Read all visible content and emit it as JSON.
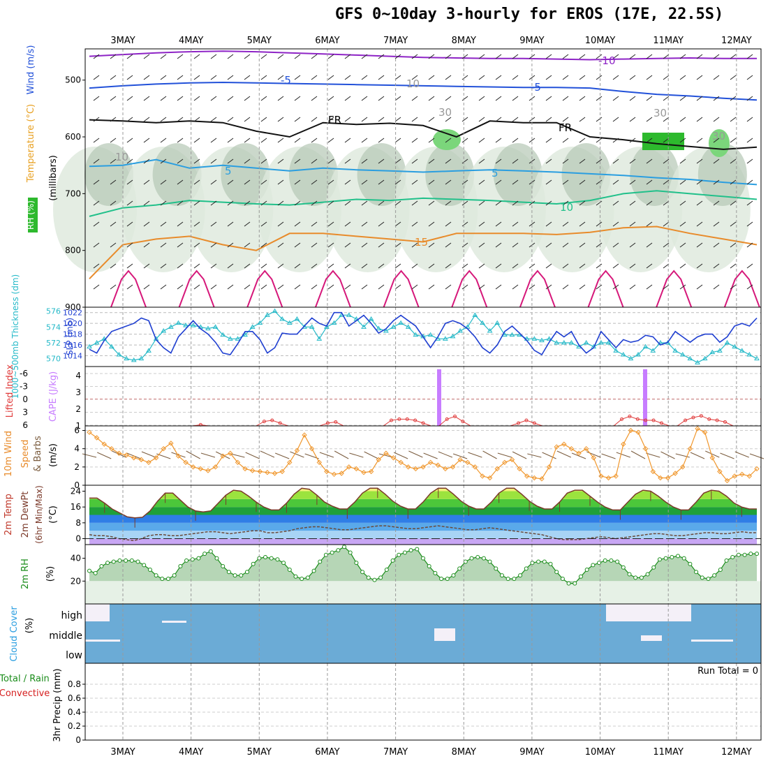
{
  "header": {
    "title": "GFS 0~10day 3-hourly for EROS (17E, 22.5S)"
  },
  "dates": [
    "3MAY",
    "4MAY",
    "5MAY",
    "6MAY",
    "7MAY",
    "8MAY",
    "9MAY",
    "10MAY",
    "11MAY",
    "12MAY"
  ],
  "colors": {
    "rh_green": "#2db92d",
    "slp": "#1f3fd1",
    "thickness": "#24b9c8",
    "lifted": "#e03c3c",
    "cape": "#c77dff",
    "wind": "#f0962b",
    "temp_fill": "#55c93d",
    "rh_line": "#1a8c1a",
    "cloud": "#6babd6"
  },
  "chart_data": [
    {
      "panel": "upper-air",
      "type": "contour",
      "ylabel_parts": [
        "RH (%)",
        "Temperature (°C)",
        "Wind (m/s)"
      ],
      "ylabel_units": "(millibars)",
      "y_ticks": [
        500,
        600,
        700,
        800,
        900
      ],
      "ylim": [
        445,
        900
      ],
      "contour_labels": [
        "-10",
        "-5",
        "-5",
        "FR",
        "FR",
        "5",
        "5",
        "10",
        "15",
        "30",
        "30",
        "10",
        "10",
        "30"
      ],
      "isotherms": [
        {
          "name": "-10",
          "values": [
            458,
            455,
            452,
            450,
            449,
            450,
            452,
            454,
            456,
            458,
            460,
            461,
            462,
            462,
            463,
            464,
            463,
            462,
            461,
            462,
            462
          ]
        },
        {
          "name": "-5",
          "values": [
            514,
            510,
            507,
            505,
            504,
            505,
            506,
            507,
            508,
            509,
            510,
            511,
            512,
            513,
            513,
            514,
            520,
            525,
            528,
            532,
            535
          ]
        },
        {
          "name": "0",
          "values": [
            570,
            572,
            575,
            572,
            575,
            590,
            600,
            575,
            578,
            576,
            580,
            600,
            572,
            575,
            575,
            600,
            605,
            612,
            617,
            622,
            618
          ]
        },
        {
          "name": "5",
          "values": [
            652,
            650,
            640,
            655,
            650,
            655,
            660,
            655,
            658,
            660,
            662,
            660,
            658,
            660,
            662,
            665,
            668,
            672,
            675,
            680,
            684
          ]
        },
        {
          "name": "10",
          "values": [
            740,
            725,
            720,
            712,
            715,
            718,
            720,
            715,
            710,
            712,
            708,
            710,
            712,
            715,
            718,
            712,
            700,
            695,
            700,
            705,
            710
          ]
        },
        {
          "name": "15",
          "values": [
            850,
            790,
            780,
            775,
            790,
            800,
            770,
            770,
            775,
            780,
            785,
            770,
            770,
            770,
            772,
            768,
            760,
            758,
            770,
            780,
            790
          ]
        }
      ]
    },
    {
      "panel": "slp-thickness",
      "type": "line",
      "ylabel_left": "1000~500mb Thickness (dm)",
      "ylabel_right": "SLP (mb)",
      "thickness_ticks": [
        570,
        572,
        574,
        576
      ],
      "slp_ticks": [
        1014,
        1016,
        1018,
        1020,
        1022
      ],
      "series": [
        {
          "name": "SLP (mb)",
          "axis": "slp",
          "ylim": [
            1012,
            1023
          ],
          "values": [
            1015.2,
            1014.5,
            1016.8,
            1018.5,
            1019,
            1019.5,
            1020,
            1021,
            1020.5,
            1017,
            1015.5,
            1014.5,
            1017.5,
            1019,
            1020.5,
            1019,
            1018,
            1016.5,
            1014.5,
            1014.2,
            1016.2,
            1018.5,
            1018.5,
            1017,
            1014.5,
            1015.5,
            1018.2,
            1018,
            1018,
            1019.5,
            1021,
            1020,
            1019.5,
            1022,
            1022,
            1019.5,
            1020.5,
            1021.5,
            1020,
            1018.2,
            1019,
            1020.5,
            1021.5,
            1020.5,
            1019.5,
            1017.5,
            1015.5,
            1017.5,
            1020,
            1020.5,
            1020,
            1019,
            1017.5,
            1015.5,
            1014.5,
            1016,
            1018.5,
            1019.5,
            1018.2,
            1016.8,
            1015,
            1014.2,
            1016.5,
            1018.5,
            1017.5,
            1018.5,
            1016,
            1014.5,
            1015.5,
            1018.5,
            1017,
            1015.5,
            1017,
            1016.5,
            1016.8,
            1017.8,
            1017.5,
            1016,
            1016.5,
            1018.5,
            1017.5,
            1016.5,
            1017.5,
            1018,
            1018,
            1016.5,
            1017.5,
            1019.5,
            1020,
            1019.5,
            1021
          ]
        },
        {
          "name": "Thickness (dm)",
          "axis": "thickness",
          "ylim": [
            569,
            576.5
          ],
          "values": [
            571.5,
            572,
            572.5,
            571.5,
            570.5,
            570,
            569.8,
            570,
            571,
            572.5,
            573.5,
            574,
            574.5,
            574.2,
            574.2,
            574,
            573.8,
            574,
            573,
            572.5,
            572.5,
            573,
            574,
            574.5,
            575.5,
            576,
            575,
            574.5,
            575,
            574,
            574,
            572.5,
            574,
            574.5,
            575.5,
            575.5,
            575,
            574,
            575,
            573.8,
            573.5,
            574,
            574.5,
            574,
            573,
            572.8,
            573,
            572.5,
            572.5,
            572.8,
            573.5,
            574,
            575.5,
            574.5,
            573.5,
            574.5,
            573,
            573,
            573,
            572.5,
            572.5,
            572.3,
            572.5,
            572,
            572,
            572,
            571.5,
            572,
            571.5,
            572,
            572,
            571,
            570.5,
            570,
            570.5,
            571.5,
            571,
            572,
            572,
            571,
            570.5,
            570,
            569.5,
            570,
            570.8,
            571,
            572,
            571.5,
            571,
            570.5,
            570
          ]
        }
      ]
    },
    {
      "panel": "lifted-cape",
      "type": "bar",
      "ylabel_left": "Lifted Index",
      "ylabel_right": "CAPE (J/kg)",
      "lifted_ticks": [
        "-6",
        "-3",
        "0",
        "3",
        "6"
      ],
      "cape_ticks": [
        "1",
        "2",
        "3",
        "4"
      ],
      "cape_bars": [
        {
          "x": "7MAY 15Z",
          "value": 4.2
        },
        {
          "x": "10MAY 15Z",
          "value": 4.2
        }
      ],
      "lifted_index": [
        6,
        6,
        6,
        6,
        6,
        6,
        6,
        6,
        6,
        6,
        6,
        6,
        6,
        6,
        5.8,
        6,
        6,
        6,
        6,
        6,
        6,
        6,
        5.2,
        5,
        5.5,
        6,
        6,
        6,
        6,
        6,
        5.5,
        5.3,
        6,
        6,
        6,
        6,
        6,
        6,
        5,
        4.8,
        4.8,
        5,
        5.5,
        6,
        6,
        4.8,
        4.3,
        5.2,
        6,
        6,
        6,
        6,
        6,
        6,
        5.5,
        5,
        5.5,
        6,
        6,
        6,
        6,
        6,
        6,
        6,
        6,
        6,
        6,
        4.8,
        4.3,
        4.8,
        5,
        5,
        5.5,
        6,
        6,
        5,
        4.5,
        4.2,
        4.8,
        5,
        5.3,
        6,
        6,
        6,
        6
      ]
    },
    {
      "panel": "10m-wind",
      "type": "line",
      "ylabel_parts": [
        "10m Wind",
        "Speed",
        "& Barbs"
      ],
      "ylabel_units": "(m/s)",
      "y_ticks": [
        0,
        2,
        4,
        6
      ],
      "ylim": [
        0,
        6.5
      ],
      "values": [
        5.8,
        5.2,
        4.5,
        4,
        3.5,
        3.3,
        3,
        2.8,
        2.5,
        3,
        4,
        4.6,
        3.2,
        2.5,
        2,
        1.8,
        1.6,
        2,
        3.2,
        3.5,
        2.5,
        1.8,
        1.6,
        1.5,
        1.4,
        1.3,
        1.5,
        2.5,
        3.8,
        5.5,
        4,
        2.5,
        1.5,
        1.2,
        1.3,
        2,
        1.8,
        1.4,
        1.5,
        2.8,
        3.5,
        3,
        2.5,
        2,
        1.8,
        2,
        2.5,
        2.2,
        1.8,
        2,
        2.8,
        2.5,
        2,
        1,
        0.8,
        1.8,
        2.5,
        2.8,
        1.8,
        1,
        0.8,
        0.7,
        2,
        4.2,
        4.5,
        4,
        3.5,
        4,
        3,
        1,
        0.8,
        1,
        4.5,
        6,
        5.8,
        4,
        1.5,
        0.8,
        0.8,
        1.3,
        2,
        4,
        6.2,
        5.8,
        3,
        1.5,
        0.5,
        1,
        1.2,
        1,
        1.8
      ]
    },
    {
      "panel": "2m-temp",
      "type": "area",
      "ylabel_parts": [
        "2m Temp",
        "2m DewPt",
        "(6hr Min/Max)"
      ],
      "ylabel_units": "(°C)",
      "y_ticks": [
        0,
        8,
        16,
        24
      ],
      "ylim": [
        -3,
        27
      ],
      "temp": [
        20.5,
        20.5,
        18,
        15,
        13,
        11,
        10.5,
        10.8,
        14,
        19,
        23,
        23,
        19.5,
        16,
        14,
        13.5,
        14,
        18,
        22,
        24.5,
        24,
        21.5,
        18.5,
        16,
        14.5,
        14.5,
        18,
        22.5,
        25.5,
        25,
        22,
        18.5,
        16.5,
        15,
        15,
        18.5,
        23,
        25.5,
        25.5,
        22.5,
        19,
        16.5,
        15,
        15,
        18.5,
        23,
        25.5,
        25.5,
        22.5,
        19,
        16.5,
        15,
        15,
        18.5,
        23,
        25.5,
        25.5,
        22.5,
        19,
        16.5,
        15,
        15,
        18.5,
        23,
        24.5,
        24.5,
        21.5,
        18.5,
        16,
        14.5,
        14.5,
        18.5,
        22.5,
        24.5,
        24,
        21.5,
        18.5,
        16,
        14.5,
        14.5,
        18.5,
        23,
        24.5,
        24,
        21.5,
        18,
        16,
        15,
        15
      ],
      "dewpoint": [
        2,
        1.5,
        1.5,
        1,
        0,
        -0.5,
        -1,
        0,
        1.5,
        2,
        2,
        1.5,
        1.5,
        2,
        2.5,
        3,
        3.5,
        3.5,
        3,
        2.5,
        3,
        3.5,
        4,
        4,
        3,
        3,
        3.5,
        4,
        5,
        5.5,
        6,
        6,
        5.5,
        5,
        4.5,
        4.5,
        5,
        5.5,
        6,
        6.5,
        6.5,
        6,
        5.5,
        5,
        5,
        5.5,
        6,
        6.5,
        6,
        5.5,
        5,
        4.5,
        4.5,
        5,
        5.5,
        5,
        4.5,
        4,
        3.5,
        3,
        2.5,
        2,
        1,
        0,
        -0.5,
        -0.5,
        -0.5,
        0,
        0.5,
        1,
        0.5,
        0,
        0.5,
        1,
        1.5,
        2,
        2.5,
        2.5,
        2,
        1.5,
        1.5,
        2,
        2.5,
        3,
        3,
        2.5,
        2.5,
        3,
        3.5,
        3,
        3
      ]
    },
    {
      "panel": "2m-rh",
      "type": "area",
      "ylabel": "2m RH",
      "ylabel_units": "(%)",
      "y_ticks": [
        20,
        40
      ],
      "ylim": [
        0,
        52
      ],
      "values": [
        29,
        27,
        33,
        36,
        37,
        38,
        38,
        38,
        37,
        34,
        30,
        25,
        22,
        22,
        25,
        33,
        38,
        39,
        40,
        44,
        46,
        40,
        33,
        28,
        25,
        25,
        28,
        35,
        40,
        41,
        40,
        39,
        36,
        30,
        24,
        22,
        23,
        29,
        37,
        43,
        45,
        47,
        50,
        45,
        36,
        28,
        23,
        21,
        23,
        30,
        38,
        43,
        45,
        47,
        48,
        40,
        33,
        27,
        22,
        22,
        25,
        31,
        37,
        40,
        41,
        40,
        37,
        31,
        25,
        22,
        22,
        25,
        31,
        36,
        37,
        37,
        35,
        28,
        22,
        18,
        18,
        24,
        30,
        34,
        36,
        38,
        38,
        37,
        32,
        26,
        23,
        23,
        26,
        32,
        39,
        40,
        41,
        42,
        40,
        35,
        28,
        23,
        22,
        25,
        30,
        38,
        41,
        43,
        43,
        44,
        44
      ]
    },
    {
      "panel": "cloud-cover",
      "type": "heatmap",
      "ylabel": "Cloud Cover",
      "ylabel_units": "(%)",
      "levels": [
        "high",
        "middle",
        "low"
      ]
    },
    {
      "panel": "precip",
      "type": "bar",
      "ylabel_parts": [
        "Total / Rain",
        "Convective",
        "3hr Precip (mm)"
      ],
      "y_ticks": [
        "0",
        "0.2",
        "0.4",
        "0.6",
        "0.8"
      ],
      "ylim": [
        0,
        1
      ],
      "run_total": "Run Total = 0",
      "values": []
    }
  ]
}
